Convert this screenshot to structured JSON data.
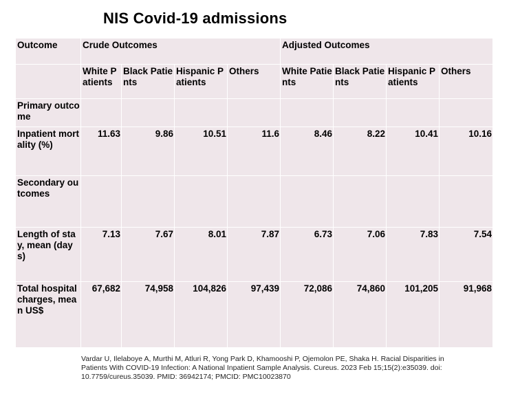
{
  "title": "NIS Covid-19 admissions",
  "table": {
    "header_row1": {
      "outcome": "Outcome",
      "crude": "Crude Outcomes",
      "adjusted": "Adjusted Outcomes"
    },
    "header_row2": [
      "White Patients",
      "Black Patients",
      "Hispanic Patients",
      "Others",
      "White Patients",
      "Black Patients",
      "Hispanic Patients",
      "Others"
    ],
    "rows": [
      {
        "label": "Primary outcome",
        "values": [
          "",
          "",
          "",
          "",
          "",
          "",
          "",
          ""
        ]
      },
      {
        "label": "Inpatient mortality (%)",
        "values": [
          "11.63",
          "9.86",
          "10.51",
          "11.6",
          "8.46",
          "8.22",
          "10.41",
          "10.16"
        ]
      },
      {
        "label": "Secondary outcomes",
        "values": [
          "",
          "",
          "",
          "",
          "",
          "",
          "",
          ""
        ]
      },
      {
        "label": "Length of stay, mean (days)",
        "values": [
          "7.13",
          "7.67",
          "8.01",
          "7.87",
          "6.73",
          "7.06",
          "7.83",
          "7.54"
        ]
      },
      {
        "label": "Total hospital charges, mean US$",
        "values": [
          "67,682",
          "74,958",
          "104,826",
          "97,439",
          "72,086",
          "74,860",
          "101,205",
          "91,968"
        ]
      }
    ]
  },
  "citation": "Vardar U, Ilelaboye A, Murthi M, Atluri R, Yong Park D, Khamooshi P, Ojemolon PE, Shaka H. Racial Disparities in Patients With COVID-19 Infection: A National Inpatient Sample Analysis. Cureus. 2023 Feb 15;15(2):e35039. doi: 10.7759/cureus.35039. PMID: 36942174; PMCID: PMC10023870"
}
